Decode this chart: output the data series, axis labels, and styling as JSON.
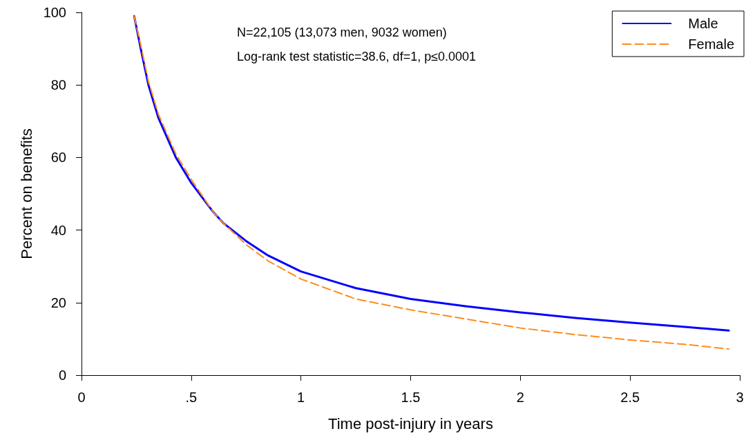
{
  "chart_data": {
    "type": "line",
    "xlabel": "Time post-injury in years",
    "ylabel": "Percent on benefits",
    "annotations": [
      "N=22,105 (13,073 men, 9032 women)",
      "Log-rank test statistic=38.6, df=1, p≤0.0001"
    ],
    "xlim": [
      0,
      3
    ],
    "xticks": [
      0,
      {
        "value": 0.5,
        "label": ".5"
      },
      1,
      {
        "value": 1.5,
        "label": "1.5"
      },
      2,
      {
        "value": 2.5,
        "label": "2.5"
      },
      3
    ],
    "ylim": [
      0,
      100
    ],
    "yticks": [
      0,
      20,
      40,
      60,
      80,
      100
    ],
    "grid": false,
    "legend": "top right",
    "marker": "none",
    "series": [
      {
        "name": "Male",
        "color": "#0000ff",
        "line_style": "solid",
        "x": [
          0.24,
          0.27,
          0.305,
          0.35,
          0.43,
          0.5,
          0.6,
          0.645,
          0.75,
          0.85,
          1,
          1.25,
          1.5,
          1.75,
          2,
          2.25,
          2.5,
          2.75,
          2.95
        ],
        "values": [
          99,
          90,
          80,
          71,
          60,
          53,
          45,
          42,
          37,
          33,
          28.6,
          24,
          21,
          19,
          17.3,
          15.8,
          14.5,
          13.3,
          12.3
        ]
      },
      {
        "name": "Female",
        "color": "#ff8c1a",
        "line_style": "dashed",
        "x": [
          0.24,
          0.27,
          0.305,
          0.35,
          0.43,
          0.5,
          0.6,
          0.645,
          0.75,
          0.85,
          1,
          1.25,
          1.5,
          1.75,
          2,
          2.25,
          2.5,
          2.75,
          2.95
        ],
        "values": [
          99,
          91,
          81,
          72,
          61,
          54,
          45,
          42,
          36,
          31.5,
          26.5,
          21,
          18,
          15.5,
          13,
          11.2,
          9.7,
          8.5,
          7.2
        ]
      }
    ]
  }
}
